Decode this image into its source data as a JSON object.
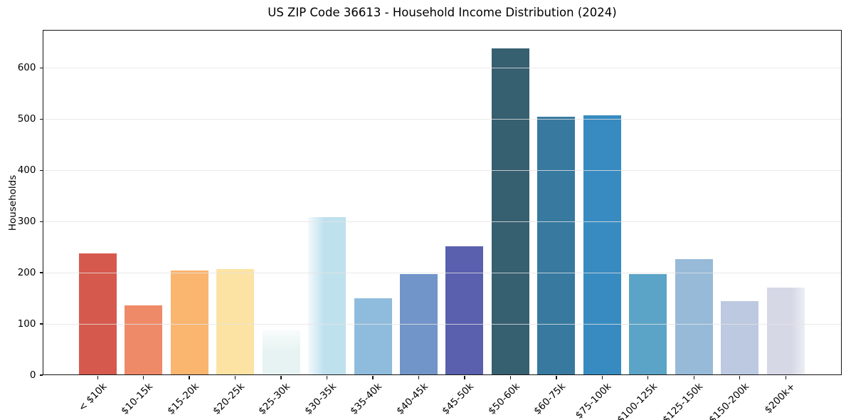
{
  "chart_data": {
    "type": "bar",
    "title": "US ZIP Code 36613 - Household Income Distribution (2024)",
    "xlabel": "",
    "ylabel": "Households",
    "categories": [
      "< $10k",
      "$10-15k",
      "$15-20k",
      "$20-25k",
      "$25-30k",
      "$30-35k",
      "$35-40k",
      "$40-45k",
      "$45-50k",
      "$50-60k",
      "$60-75k",
      "$75-100k",
      "$100-125k",
      "$125-150k",
      "$150-200k",
      "$200k+"
    ],
    "values": [
      238,
      136,
      204,
      207,
      88,
      309,
      150,
      197,
      251,
      638,
      504,
      507,
      197,
      227,
      145,
      171
    ],
    "bar_colors": [
      "#d6594d",
      "#ef8a68",
      "#fab56f",
      "#fde3a3",
      "#e7f3f2",
      "#bfe1ee",
      "#8fbcdc",
      "#7195c9",
      "#5a5fae",
      "#365f70",
      "#37799f",
      "#378bc0",
      "#5ca4c7",
      "#97bad8",
      "#bcc9e0",
      "#d6d8e6"
    ],
    "yticks": [
      0,
      100,
      200,
      300,
      400,
      500,
      600
    ],
    "ylim": [
      0,
      674
    ],
    "grid": "horizontal-light",
    "legend": "none",
    "background_color": "#ffffff",
    "axis_color": "#141414"
  }
}
